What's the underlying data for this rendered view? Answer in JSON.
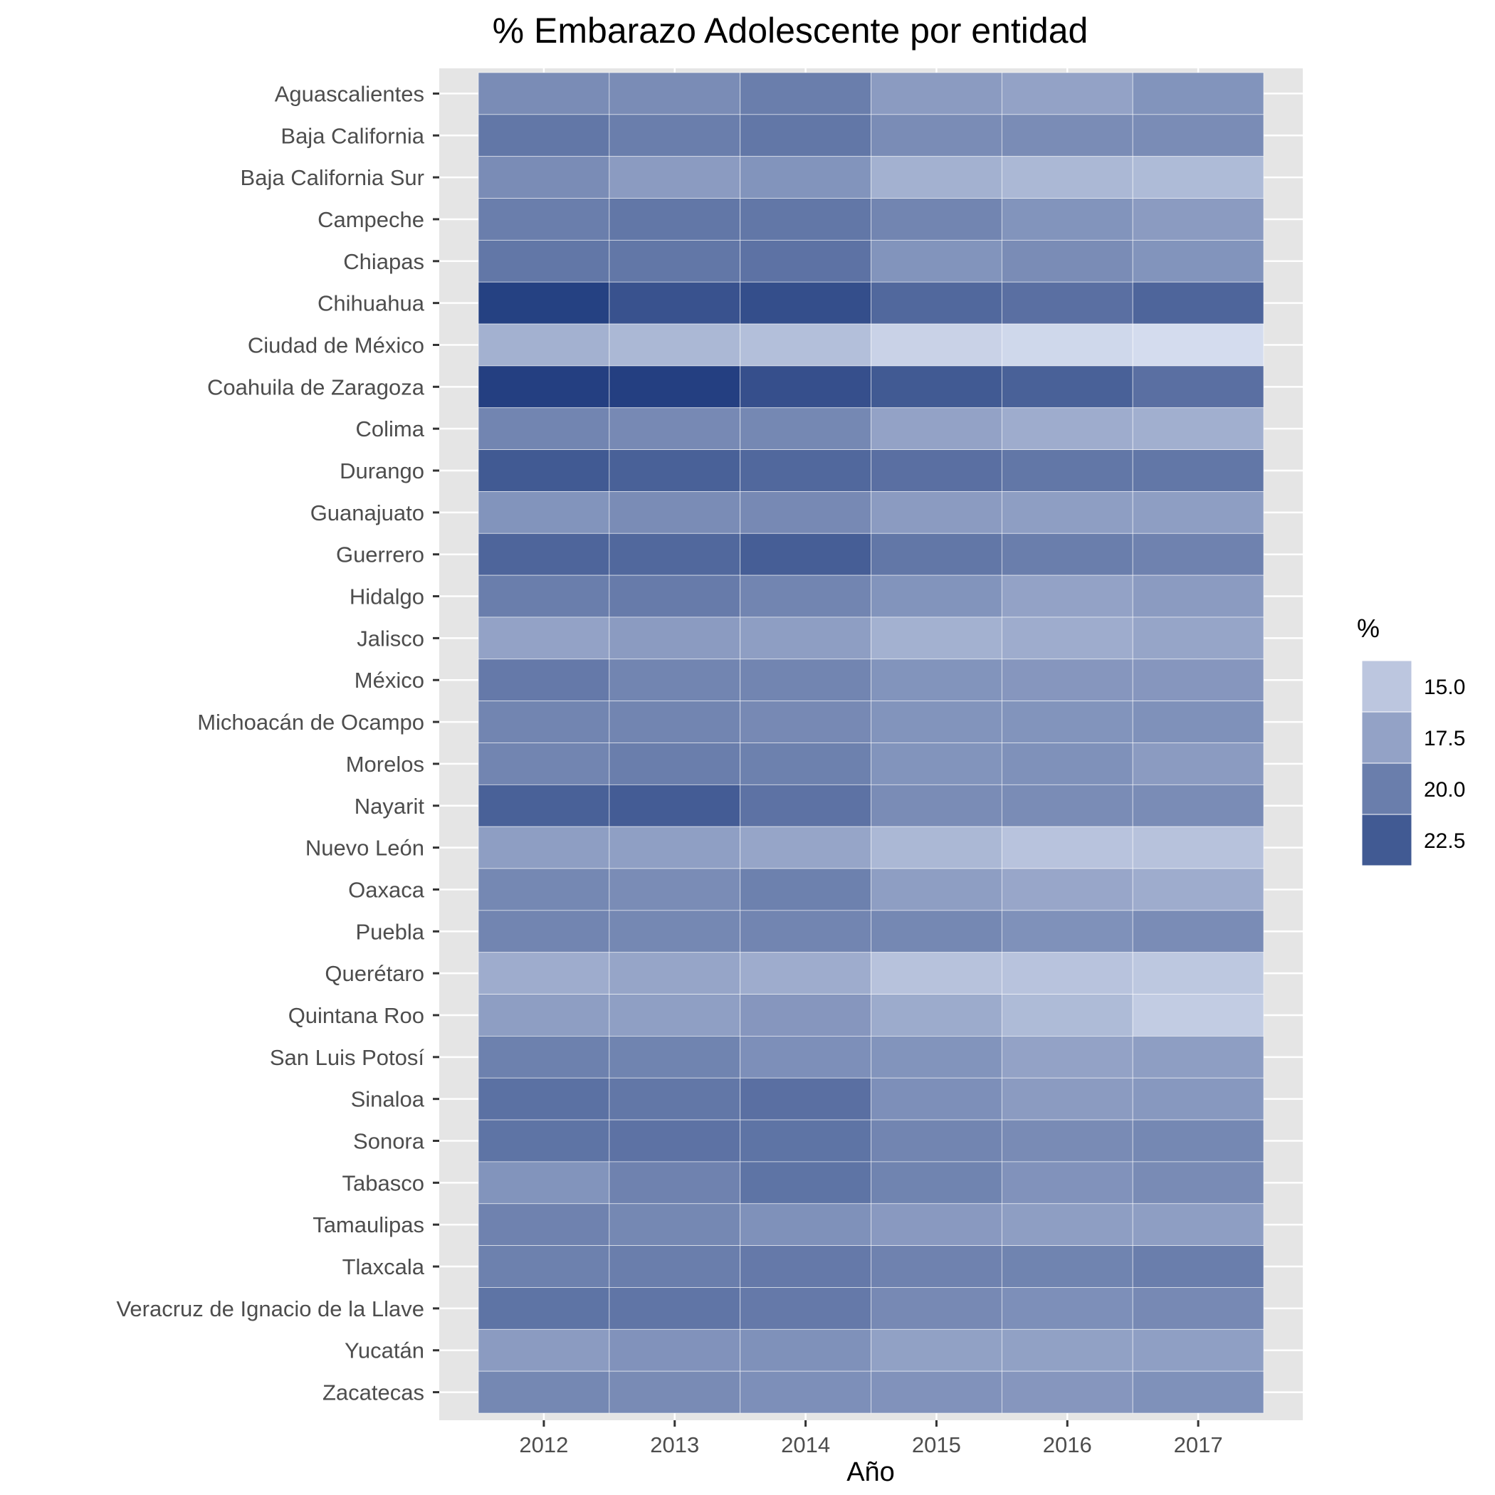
{
  "chart_data": {
    "type": "heatmap",
    "title": "% Embarazo Adolescente por entidad",
    "xlabel": "Año",
    "ylabel": "",
    "x": [
      "2012",
      "2013",
      "2014",
      "2015",
      "2016",
      "2017"
    ],
    "y": [
      "Aguascalientes",
      "Baja California",
      "Baja California Sur",
      "Campeche",
      "Chiapas",
      "Chihuahua",
      "Ciudad de México",
      "Coahuila de Zaragoza",
      "Colima",
      "Durango",
      "Guanajuato",
      "Guerrero",
      "Hidalgo",
      "Jalisco",
      "México",
      "Michoacán de Ocampo",
      "Morelos",
      "Nayarit",
      "Nuevo León",
      "Oaxaca",
      "Puebla",
      "Querétaro",
      "Quintana Roo",
      "San Luis Potosí",
      "Sinaloa",
      "Sonora",
      "Tabasco",
      "Tamaulipas",
      "Tlaxcala",
      "Veracruz de Ignacio de la Llave",
      "Yucatán",
      "Zacatecas"
    ],
    "values": [
      [
        19.0,
        19.0,
        20.0,
        18.0,
        17.5,
        18.5
      ],
      [
        20.5,
        20.0,
        20.5,
        19.0,
        19.0,
        19.0
      ],
      [
        19.0,
        18.0,
        18.5,
        16.5,
        16.0,
        15.8
      ],
      [
        20.0,
        20.5,
        20.5,
        19.5,
        18.5,
        18.0
      ],
      [
        20.5,
        20.5,
        20.8,
        18.5,
        19.0,
        18.5
      ],
      [
        24.2,
        23.0,
        23.3,
        21.5,
        21.0,
        21.7
      ],
      [
        16.5,
        16.0,
        15.5,
        14.2,
        13.8,
        13.5
      ],
      [
        24.3,
        24.3,
        23.2,
        22.5,
        22.0,
        21.0
      ],
      [
        19.5,
        19.2,
        19.3,
        17.5,
        16.8,
        16.6
      ],
      [
        22.5,
        22.0,
        21.5,
        21.0,
        20.5,
        20.5
      ],
      [
        18.5,
        19.0,
        19.2,
        18.0,
        17.8,
        17.8
      ],
      [
        21.7,
        21.5,
        22.2,
        20.5,
        20.0,
        19.7
      ],
      [
        20.0,
        20.2,
        19.5,
        18.5,
        17.5,
        18.0
      ],
      [
        17.5,
        18.0,
        17.8,
        16.5,
        16.8,
        17.3
      ],
      [
        20.3,
        19.5,
        19.5,
        18.5,
        18.3,
        18.3
      ],
      [
        19.5,
        19.5,
        19.2,
        18.5,
        18.5,
        18.7
      ],
      [
        19.5,
        20.0,
        19.8,
        18.5,
        18.7,
        18.0
      ],
      [
        22.0,
        22.3,
        20.8,
        19.0,
        19.0,
        19.0
      ],
      [
        17.8,
        17.7,
        17.3,
        16.0,
        15.2,
        15.3
      ],
      [
        19.3,
        19.0,
        19.8,
        17.8,
        17.2,
        16.8
      ],
      [
        19.5,
        19.3,
        19.5,
        19.3,
        18.7,
        19.0
      ],
      [
        16.8,
        17.3,
        16.8,
        15.3,
        15.2,
        14.9
      ],
      [
        17.8,
        17.7,
        18.3,
        16.9,
        15.8,
        14.6
      ],
      [
        19.8,
        19.6,
        18.8,
        18.5,
        17.5,
        17.8
      ],
      [
        20.9,
        20.5,
        21.0,
        18.8,
        18.0,
        18.2
      ],
      [
        20.7,
        20.8,
        20.7,
        19.5,
        19.1,
        19.3
      ],
      [
        18.5,
        19.7,
        20.7,
        19.6,
        18.6,
        19.1
      ],
      [
        19.7,
        19.3,
        18.7,
        18.1,
        17.8,
        17.8
      ],
      [
        19.8,
        20.0,
        20.3,
        19.7,
        19.6,
        20.0
      ],
      [
        20.7,
        20.6,
        20.3,
        19.2,
        18.8,
        19.2
      ],
      [
        18.0,
        18.6,
        18.7,
        17.6,
        17.6,
        17.7
      ],
      [
        19.3,
        19.1,
        18.8,
        18.6,
        18.3,
        18.7
      ]
    ],
    "legend": {
      "title": "%",
      "breaks": [
        15.0,
        17.5,
        20.0,
        22.5
      ],
      "labels": [
        "15.0",
        "17.5",
        "20.0",
        "22.5"
      ],
      "position": "right"
    },
    "color_scale": {
      "low_value": 13.5,
      "low": "#d4dcee",
      "high_value": 24.4,
      "high": "#223e80"
    },
    "panel_background": "#e5e5e5",
    "grid": true
  }
}
